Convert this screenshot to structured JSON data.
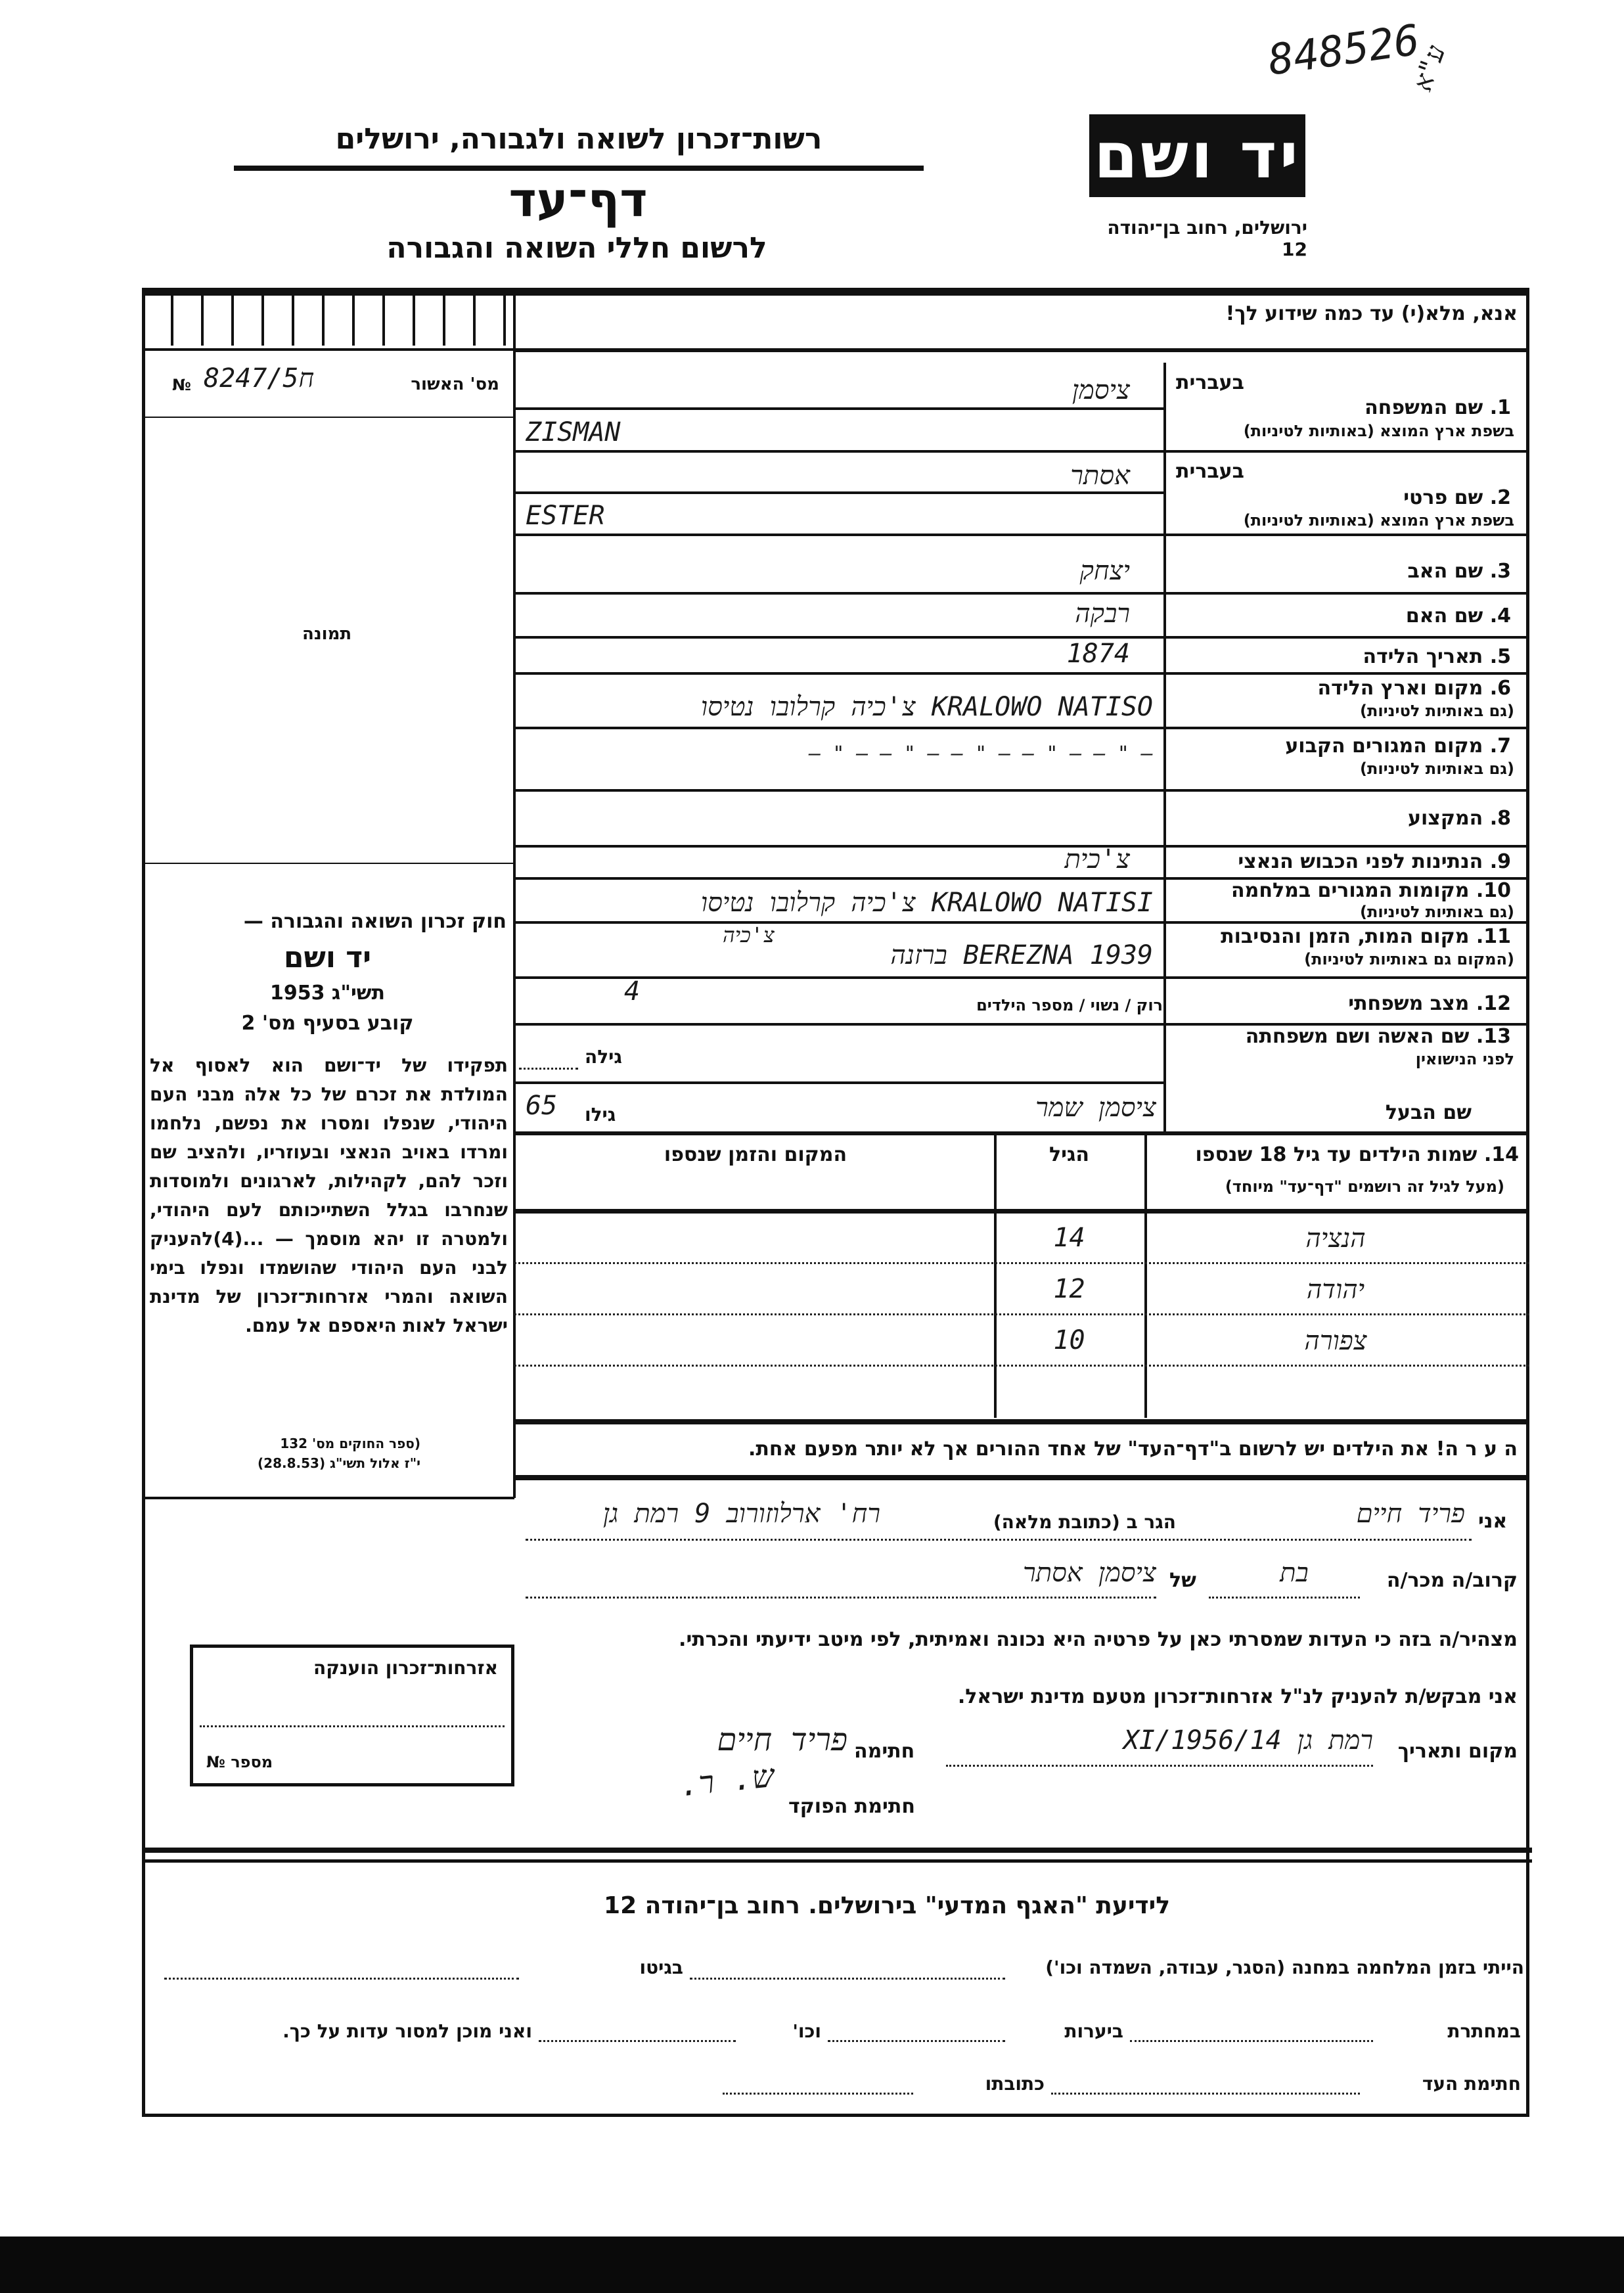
{
  "header": {
    "archive_number": "848526",
    "archive_mark": "ע\"א",
    "logo_text": "יד ושם",
    "address": "ירושלים, רחוב בן־יהודה 12",
    "authority": "רשות־זכרון לשואה ולגבורה, ירושלים",
    "form_title": "דף־עד",
    "form_subtitle": "לרשום חללי השואה והגבורה"
  },
  "instruction": "אנא, מלא(י) עד כמה שידוע לך!",
  "left_column": {
    "approval_label": "מס' האשור",
    "approval_value": "ח8247/5",
    "approval_no_sign": "№",
    "photo_label": "תמונה",
    "law_title": "חוק זכרון השואה והגבורה —",
    "law_name": "יד ושם",
    "law_year": "תשי\"ג 1953",
    "law_clause": "קובע בסעיף מס' 2",
    "law_text": "תפקידו של יד־ושם הוא לאסוף אל המולדת את זכרם של כל אלה מבני העם היהודי, שנפלו ומסרו את נפשם, נלחמו ומרדו באויב הנאצי ובעוזריו, ולהציב שם וזכר להם, לקהילות, לארגונים ולמוסדות שנחרבו בגלל השתייכותם לעם היהודי, ולמטרה זו יהא מוסמך — ...(4)להעניק לבני העם היהודי שהושמדו ונפלו בימי השואה והמרי אזרחות־זכרון של מדינת ישראל לאות היאספם אל עמם.",
    "law_source_1": "(ספר החוקים מס' 132",
    "law_source_2": "י\"ז אלול תשי\"ג (28.8.53)",
    "stamp_title": "אזרחות־זכרון הוענקה",
    "stamp_number_label": "מספר №"
  },
  "fields": [
    {
      "label": "1. שם המשפחה",
      "hebrew_tag": "בעברית",
      "sub": "בשפת ארץ המוצא (באותיות לטיניות)",
      "value_hebrew": "ציסמן",
      "value_latin": "ZISMAN"
    },
    {
      "label": "2. שם פרטי",
      "hebrew_tag": "בעברית",
      "sub": "בשפת ארץ המוצא (באותיות לטיניות)",
      "value_hebrew": "אסתר",
      "value_latin": "ESTER"
    },
    {
      "label": "3. שם האב",
      "value": "יצחק"
    },
    {
      "label": "4. שם האם",
      "value": "רבקה"
    },
    {
      "label": "5. תאריך הלידה",
      "value": "1874"
    },
    {
      "label": "6. מקום וארץ הלידה",
      "sub": "(גם באותיות לטיניות)",
      "value": "KRALOWO NATISO צ'כיה   קרלובו נטיסו"
    },
    {
      "label": "7. מקום המגורים הקבוע",
      "sub": "(גם באותיות לטיניות)",
      "value": "— \" —   — \" —   — \" —   — \" —   — \" —"
    },
    {
      "label": "8. המקצוע",
      "value": ""
    },
    {
      "label": "9. הנתינות לפני הכבוש הנאצי",
      "value": "צ'כית"
    },
    {
      "label": "10. מקומות המגורים במלחמה",
      "sub": "(גם באותיות לטיניות)",
      "value": "KRALOWO NATISI   צ'כיה   קרלובו נטיסו"
    },
    {
      "label": "11. מקום המות, הזמן והנסיבות",
      "sub": "(המקום גם באותיות לטיניות)",
      "value": "BEREZNA   1939   ברזנה",
      "value_note": "צ'כיה"
    },
    {
      "label": "12. מצב משפחתי",
      "value_prefix": "רוק / נשוי / מספר הילדים",
      "value": "4"
    },
    {
      "label": "13. שם האשה ושם משפחתה",
      "sub": "לפני הנישואין",
      "age_label": "גילה",
      "value": ""
    },
    {
      "label": "שם הבעל",
      "age_label": "גילו",
      "age_value": "65",
      "value": "ציסמן שמר"
    }
  ],
  "children": {
    "label": "14. שמות הילדים עד גיל 18 שנספו",
    "sub": "(מעל לגיל זה רושמים \"דף־עד\" מיוחד)",
    "age_header": "הגיל",
    "place_header": "המקום והזמן שנספו",
    "rows": [
      {
        "name": "הנציה",
        "age": "14",
        "place": ""
      },
      {
        "name": "יהודה",
        "age": "12",
        "place": ""
      },
      {
        "name": "צפורה",
        "age": "10",
        "place": ""
      },
      {
        "name": "",
        "age": "",
        "place": ""
      }
    ]
  },
  "note": "ה ע ר ה!   את הילדים יש לרשום ב\"דף־העד\" של אחד ההורים אך לא יותר מפעם אחת.",
  "declaration": {
    "i_label": "אני",
    "witness_name": "פריד חיים",
    "lives_label": "הגר ב (כתובת מלאה)",
    "address": "רח' ארלוזורוב 9 רמת גן",
    "relative_label": "קרוב/ה מכר/ה",
    "relation": "בת",
    "of_label": "של",
    "of_value": "ציסמן אסתר",
    "statement": "מצהיר/ה בזה כי העדות שמסרתי כאן על פרטיה היא נכונה ואמיתית, לפי מיטב ידיעתי והכרתי.",
    "request": "אני מבקש/ת להעניק לנ\"ל אזרחות־זכרון מטעם מדינת ישראל.",
    "place_date_label": "מקום ותאריך",
    "place_date_value": "רמת גן   14/XI/1956",
    "signature_label": "חתימה",
    "signature_value": "פריד חיים",
    "officer_label": "חתימת הפוקד",
    "officer_signature": "ש. ר."
  },
  "bottom": {
    "heading": "לידיעת \"האגף המדעי\" בירושלים.  רחוב בן־יהודה 12",
    "line1_a": "הייתי בזמן המלחמה במחנה (הסגר, עבודה, השמדה וכו')",
    "line1_b": "בגיטו",
    "line2_a": "במחתרת",
    "line2_b": "ביערות",
    "line2_c": "וכו'",
    "line2_d": "ואני מוכן למסור עדות על כך.",
    "line3_a": "חתימת העד",
    "line3_b": "כתובתו"
  }
}
